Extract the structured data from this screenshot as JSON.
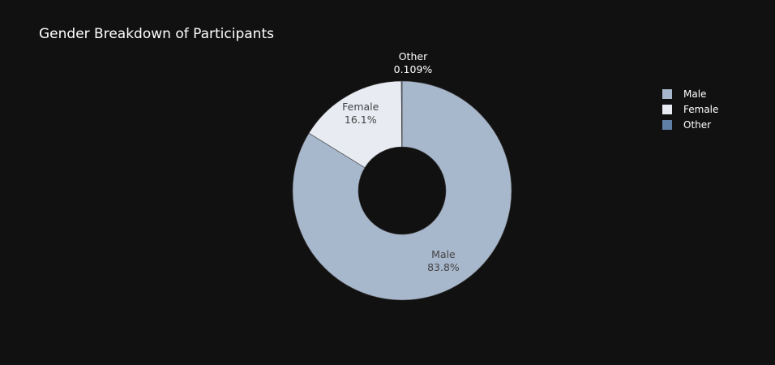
{
  "chart_data": {
    "type": "pie",
    "hole": true,
    "title": "Gender Breakdown of Participants",
    "categories": [
      "Male",
      "Female",
      "Other"
    ],
    "values": [
      83.8,
      16.1,
      0.109
    ],
    "value_labels": [
      "83.8%",
      "16.1%",
      "0.109%"
    ],
    "colors": [
      "#a7b7cc",
      "#e8ebf2",
      "#5f7fa6"
    ],
    "label_colors": [
      "#444444",
      "#444444",
      "#ffffff"
    ],
    "legend": {
      "position": "top-right",
      "entries": [
        "Male",
        "Female",
        "Other"
      ]
    },
    "background": "#111111"
  }
}
